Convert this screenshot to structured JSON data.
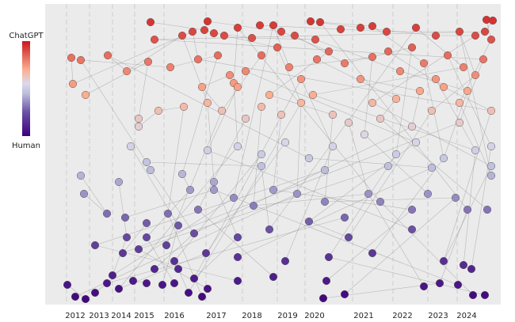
{
  "chart_data": {
    "type": "network-scatter",
    "colorbar_labels": {
      "top": "ChatGPT",
      "bottom": "Human"
    },
    "xlim": [
      0,
      575
    ],
    "ylim": [
      0,
      380
    ],
    "xticks": [
      {
        "value": 38,
        "label": "2012"
      },
      {
        "value": 68,
        "label": "2013"
      },
      {
        "value": 96,
        "label": "2014"
      },
      {
        "value": 125,
        "label": "2015"
      },
      {
        "value": 163,
        "label": "2016"
      },
      {
        "value": 216,
        "label": "2017"
      },
      {
        "value": 261,
        "label": "2018"
      },
      {
        "value": 306,
        "label": "2019"
      },
      {
        "value": 340,
        "label": "2020"
      },
      {
        "value": 402,
        "label": "2021"
      },
      {
        "value": 451,
        "label": "2022"
      },
      {
        "value": 496,
        "label": "2023"
      },
      {
        "value": 532,
        "label": "2024"
      }
    ],
    "year_boundaries": [
      27,
      56,
      85,
      113,
      150,
      203,
      249,
      293,
      328,
      388,
      439,
      483,
      520
    ],
    "colorscale": [
      [
        0,
        "#3f007d"
      ],
      [
        95,
        "#6a51a3"
      ],
      [
        170,
        "#bcbddc"
      ],
      [
        210,
        "#dadaeb"
      ],
      [
        265,
        "#fcae91"
      ],
      [
        380,
        "#cb181d"
      ]
    ],
    "x": [
      133,
      205,
      271,
      288,
      335,
      347,
      557,
      565,
      33,
      45,
      79,
      103,
      35,
      51,
      130,
      158,
      186,
      201,
      213,
      226,
      243,
      261,
      298,
      315,
      341,
      373,
      398,
      413,
      431,
      468,
      493,
      523,
      543,
      555,
      563,
      138,
      173,
      193,
      218,
      233,
      238,
      253,
      273,
      293,
      308,
      323,
      343,
      358,
      378,
      398,
      413,
      433,
      448,
      463,
      478,
      493,
      508,
      528,
      543,
      553,
      413,
      443,
      473,
      503,
      533,
      523,
      338,
      283,
      198,
      243,
      205,
      223,
      253,
      273,
      298,
      323,
      363,
      383,
      423,
      463,
      488,
      523,
      563,
      118,
      118,
      143,
      175,
      108,
      128,
      133,
      173,
      205,
      243,
      273,
      303,
      333,
      363,
      403,
      443,
      468,
      503,
      543,
      563,
      45,
      93,
      183,
      213,
      273,
      353,
      433,
      488,
      563,
      563,
      49,
      78,
      101,
      128,
      155,
      193,
      213,
      238,
      263,
      288,
      318,
      353,
      378,
      408,
      423,
      463,
      483,
      518,
      533,
      558,
      103,
      128,
      153,
      168,
      188,
      243,
      283,
      333,
      383,
      463,
      63,
      98,
      118,
      163,
      203,
      243,
      303,
      358,
      413,
      503,
      528,
      538,
      28,
      38,
      51,
      63,
      78,
      93,
      111,
      128,
      148,
      163,
      181,
      198,
      243,
      288,
      355,
      351,
      378,
      478,
      498,
      521,
      540,
      555,
      85,
      138,
      168,
      188,
      205
    ],
    "y": [
      357,
      358,
      353,
      353,
      358,
      357,
      360,
      359,
      312,
      309,
      315,
      295,
      279,
      265,
      307,
      300,
      345,
      347,
      343,
      340,
      350,
      337,
      345,
      340,
      335,
      348,
      350,
      352,
      345,
      350,
      340,
      345,
      340,
      345,
      335,
      335,
      340,
      310,
      315,
      290,
      280,
      295,
      315,
      325,
      300,
      285,
      310,
      320,
      305,
      285,
      313,
      320,
      295,
      325,
      305,
      285,
      315,
      300,
      290,
      310,
      255,
      260,
      270,
      275,
      270,
      255,
      265,
      265,
      275,
      275,
      255,
      245,
      235,
      250,
      240,
      255,
      240,
      230,
      235,
      225,
      245,
      230,
      245,
      235,
      225,
      245,
      250,
      200,
      180,
      170,
      165,
      195,
      200,
      190,
      205,
      185,
      200,
      215,
      190,
      205,
      185,
      195,
      200,
      163,
      155,
      145,
      155,
      175,
      170,
      175,
      173,
      175,
      163,
      140,
      115,
      110,
      103,
      115,
      120,
      145,
      135,
      125,
      145,
      140,
      130,
      110,
      140,
      130,
      120,
      140,
      135,
      120,
      120,
      85,
      85,
      75,
      100,
      90,
      85,
      95,
      105,
      85,
      95,
      75,
      65,
      70,
      55,
      65,
      60,
      55,
      60,
      65,
      55,
      50,
      45,
      25,
      10,
      7,
      15,
      27,
      20,
      30,
      27,
      25,
      27,
      15,
      10,
      30,
      35,
      30,
      8,
      13,
      23,
      27,
      25,
      12,
      12,
      37,
      45,
      45,
      33,
      20
    ],
    "edges": [
      [
        0,
        17
      ],
      [
        1,
        22
      ],
      [
        2,
        25
      ],
      [
        3,
        44
      ],
      [
        4,
        26
      ],
      [
        5,
        27
      ],
      [
        6,
        34
      ],
      [
        7,
        33
      ],
      [
        8,
        12
      ],
      [
        9,
        15
      ],
      [
        10,
        11
      ],
      [
        11,
        36
      ],
      [
        12,
        16
      ],
      [
        13,
        14
      ],
      [
        14,
        83
      ],
      [
        15,
        38
      ],
      [
        16,
        37
      ],
      [
        17,
        18
      ],
      [
        18,
        21
      ],
      [
        19,
        43
      ],
      [
        20,
        40
      ],
      [
        21,
        24
      ],
      [
        22,
        47
      ],
      [
        23,
        48
      ],
      [
        24,
        52
      ],
      [
        25,
        28
      ],
      [
        26,
        30
      ],
      [
        27,
        54
      ],
      [
        28,
        31
      ],
      [
        29,
        57
      ],
      [
        30,
        32
      ],
      [
        31,
        58
      ],
      [
        32,
        60
      ],
      [
        33,
        35
      ],
      [
        34,
        65
      ],
      [
        35,
        59
      ],
      [
        36,
        70
      ],
      [
        37,
        82
      ],
      [
        38,
        90
      ],
      [
        39,
        68
      ],
      [
        40,
        92
      ],
      [
        41,
        99
      ],
      [
        42,
        71
      ],
      [
        43,
        75
      ],
      [
        44,
        50
      ],
      [
        45,
        96
      ],
      [
        46,
        61
      ],
      [
        47,
        67
      ],
      [
        48,
        53
      ],
      [
        49,
        62
      ],
      [
        50,
        97
      ],
      [
        51,
        63
      ],
      [
        52,
        64
      ],
      [
        53,
        98
      ],
      [
        54,
        100
      ],
      [
        55,
        101
      ],
      [
        56,
        102
      ],
      [
        57,
        66
      ],
      [
        58,
        80
      ],
      [
        59,
        81
      ],
      [
        60,
        111
      ],
      [
        61,
        78
      ],
      [
        62,
        79
      ],
      [
        63,
        82
      ],
      [
        64,
        100
      ],
      [
        65,
        112
      ],
      [
        66,
        101
      ],
      [
        67,
        76
      ],
      [
        68,
        71
      ],
      [
        69,
        91
      ],
      [
        70,
        106
      ],
      [
        71,
        135
      ],
      [
        72,
        118
      ],
      [
        73,
        121
      ],
      [
        74,
        122
      ],
      [
        75,
        123
      ],
      [
        76,
        124
      ],
      [
        77,
        126
      ],
      [
        78,
        132
      ],
      [
        79,
        137
      ],
      [
        80,
        141
      ],
      [
        81,
        144
      ],
      [
        82,
        152
      ],
      [
        83,
        84
      ],
      [
        84,
        85
      ],
      [
        85,
        86
      ],
      [
        86,
        117
      ],
      [
        87,
        136
      ],
      [
        88,
        107
      ],
      [
        89,
        137
      ],
      [
        90,
        105
      ],
      [
        91,
        142
      ],
      [
        92,
        160
      ],
      [
        93,
        146
      ],
      [
        94,
        147
      ],
      [
        95,
        110
      ],
      [
        96,
        149
      ],
      [
        97,
        129
      ],
      [
        98,
        150
      ],
      [
        99,
        140
      ],
      [
        100,
        151
      ],
      [
        101,
        153
      ],
      [
        102,
        154
      ],
      [
        103,
        114
      ],
      [
        104,
        133
      ],
      [
        105,
        134
      ],
      [
        106,
        138
      ],
      [
        107,
        139
      ],
      [
        108,
        143
      ],
      [
        109,
        145
      ],
      [
        110,
        148
      ],
      [
        111,
        152
      ],
      [
        112,
        31
      ],
      [
        113,
        114
      ],
      [
        115,
        119
      ],
      [
        116,
        144
      ],
      [
        117,
        166
      ],
      [
        118,
        168
      ],
      [
        119,
        174
      ],
      [
        120,
        177
      ],
      [
        121,
        126
      ],
      [
        122,
        128
      ],
      [
        123,
        156
      ],
      [
        124,
        130
      ],
      [
        125,
        159
      ],
      [
        126,
        172
      ],
      [
        127,
        175
      ],
      [
        128,
        169
      ],
      [
        130,
        171
      ],
      [
        131,
        173
      ],
      [
        133,
        177
      ],
      [
        134,
        164
      ],
      [
        136,
        163
      ],
      [
        137,
        178
      ],
      [
        138,
        180
      ],
      [
        140,
        141
      ],
      [
        143,
        167
      ],
      [
        145,
        181
      ],
      [
        147,
        160
      ],
      [
        150,
        176
      ],
      [
        155,
        157
      ],
      [
        158,
        159
      ],
      [
        161,
        162
      ],
      [
        165,
        179
      ],
      [
        170,
        173
      ],
      [
        3,
        120
      ],
      [
        5,
        131
      ],
      [
        20,
        127
      ],
      [
        9,
        88
      ],
      [
        45,
        180
      ],
      [
        29,
        139
      ],
      [
        75,
        165
      ],
      [
        10,
        95
      ]
    ]
  }
}
